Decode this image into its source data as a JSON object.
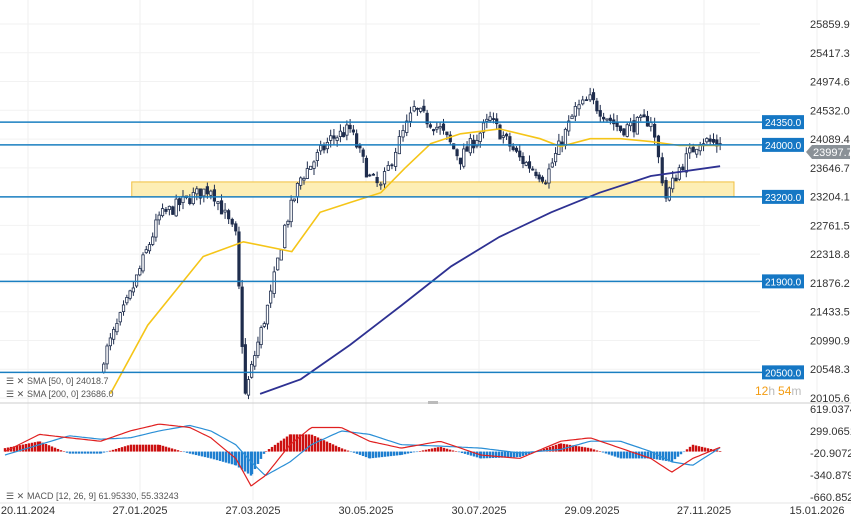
{
  "chart_data": {
    "type": "candlestick",
    "price_axis": {
      "ticks": [
        "25859.9",
        "25417.3",
        "24974.6",
        "24532.0",
        "24089.4",
        "23646.7",
        "23204.1",
        "22761.5",
        "22318.8",
        "21876.2",
        "21433.5",
        "20990.9",
        "20548.3",
        "20105.6"
      ],
      "ylim": [
        20105.6,
        25859.9
      ]
    },
    "macd_axis": {
      "ticks": [
        "619.0374",
        "299.0651",
        "-20.9072",
        "-340.879",
        "-660.852"
      ],
      "ylim": [
        -660.852,
        619.0374
      ]
    },
    "date_ticks": [
      "20.11.2024",
      "27.01.2025",
      "27.03.2025",
      "30.05.2025",
      "30.07.2025",
      "29.09.2025",
      "27.11.2025",
      "15.01.2026"
    ],
    "grid": true,
    "closes": [
      {
        "date": "03.01.2025",
        "close": 20620
      },
      {
        "date": "21.01.2025",
        "close": 21680
      },
      {
        "date": "06.02.2025",
        "close": 22890
      },
      {
        "date": "22.02.2025",
        "close": 23190
      },
      {
        "date": "05.03.2025",
        "close": 23340
      },
      {
        "date": "18.03.2025",
        "close": 22590
      },
      {
        "date": "23.03.2025",
        "close": 20150
      },
      {
        "date": "28.03.2025",
        "close": 20770
      },
      {
        "date": "06.04.2025",
        "close": 21680
      },
      {
        "date": "14.04.2025",
        "close": 22740
      },
      {
        "date": "23.04.2025",
        "close": 23490
      },
      {
        "date": "10.05.2025",
        "close": 24090
      },
      {
        "date": "21.05.2025",
        "close": 24240
      },
      {
        "date": "01.06.2025",
        "close": 23490
      },
      {
        "date": "07.06.2025",
        "close": 23340
      },
      {
        "date": "15.06.2025",
        "close": 23940
      },
      {
        "date": "25.06.2025",
        "close": 24540
      },
      {
        "date": "09.07.2025",
        "close": 24240
      },
      {
        "date": "20.07.2025",
        "close": 23790
      },
      {
        "date": "05.08.2025",
        "close": 24390
      },
      {
        "date": "21.08.2025",
        "close": 23790
      },
      {
        "date": "04.09.2025",
        "close": 23490
      },
      {
        "date": "20.09.2025",
        "close": 24540
      },
      {
        "date": "28.09.2025",
        "close": 24690
      },
      {
        "date": "14.10.2025",
        "close": 24240
      },
      {
        "date": "30.10.2025",
        "close": 24390
      },
      {
        "date": "07.11.2025",
        "close": 23190
      },
      {
        "date": "14.11.2025",
        "close": 23640
      },
      {
        "date": "25.11.2025",
        "close": 24090
      },
      {
        "date": "04.12.2025",
        "close": 23997.7
      }
    ],
    "sma50": [
      {
        "date": "09.01.2025",
        "value": 20170
      },
      {
        "date": "31.01.2025",
        "value": 21225
      },
      {
        "date": "01.03.2025",
        "value": 22283
      },
      {
        "date": "22.03.2025",
        "value": 22509
      },
      {
        "date": "18.04.2025",
        "value": 22358
      },
      {
        "date": "04.05.2025",
        "value": 22962
      },
      {
        "date": "21.05.2025",
        "value": 23113
      },
      {
        "date": "07.06.2025",
        "value": 23265
      },
      {
        "date": "20.06.2025",
        "value": 23642
      },
      {
        "date": "04.07.2025",
        "value": 24020
      },
      {
        "date": "20.07.2025",
        "value": 24171
      },
      {
        "date": "10.08.2025",
        "value": 24246
      },
      {
        "date": "01.09.2025",
        "value": 24095
      },
      {
        "date": "12.09.2025",
        "value": 23975
      },
      {
        "date": "28.09.2025",
        "value": 24095
      },
      {
        "date": "14.10.2025",
        "value": 24095
      },
      {
        "date": "30.10.2025",
        "value": 24050
      },
      {
        "date": "14.11.2025",
        "value": 23990
      },
      {
        "date": "04.12.2025",
        "value": 23990
      }
    ],
    "sma200": [
      {
        "date": "31.03.2025",
        "value": 20168
      },
      {
        "date": "23.04.2025",
        "value": 20394
      },
      {
        "date": "21.05.2025",
        "value": 20923
      },
      {
        "date": "18.06.2025",
        "value": 21527
      },
      {
        "date": "15.07.2025",
        "value": 22132
      },
      {
        "date": "10.08.2025",
        "value": 22585
      },
      {
        "date": "07.09.2025",
        "value": 22962
      },
      {
        "date": "03.10.2025",
        "value": 23265
      },
      {
        "date": "30.10.2025",
        "value": 23521
      },
      {
        "date": "04.12.2025",
        "value": 23672
      }
    ],
    "macd": [
      {
        "date": "06.11.2024",
        "macd": 0,
        "signal": -50
      },
      {
        "date": "27.11.2024",
        "macd": 250,
        "signal": 100
      },
      {
        "date": "15.12.2024",
        "macd": 200,
        "signal": 230
      },
      {
        "date": "03.01.2025",
        "macd": 150,
        "signal": 180
      },
      {
        "date": "21.01.2025",
        "macd": 300,
        "signal": 200
      },
      {
        "date": "06.02.2025",
        "macd": 400,
        "signal": 300
      },
      {
        "date": "22.02.2025",
        "macd": 350,
        "signal": 380
      },
      {
        "date": "05.03.2025",
        "macd": 200,
        "signal": 300
      },
      {
        "date": "18.03.2025",
        "macd": -100,
        "signal": 100
      },
      {
        "date": "26.03.2025",
        "macd": -500,
        "signal": -150
      },
      {
        "date": "03.04.2025",
        "macd": -350,
        "signal": -350
      },
      {
        "date": "17.04.2025",
        "macd": 100,
        "signal": -150
      },
      {
        "date": "29.04.2025",
        "macd": 350,
        "signal": 100
      },
      {
        "date": "16.05.2025",
        "macd": 350,
        "signal": 300
      },
      {
        "date": "01.06.2025",
        "macd": 150,
        "signal": 250
      },
      {
        "date": "18.06.2025",
        "macd": 50,
        "signal": 100
      },
      {
        "date": "09.07.2025",
        "macd": 150,
        "signal": 80
      },
      {
        "date": "31.07.2025",
        "macd": -50,
        "signal": 50
      },
      {
        "date": "21.08.2025",
        "macd": -100,
        "signal": -20
      },
      {
        "date": "12.09.2025",
        "macd": 150,
        "signal": 30
      },
      {
        "date": "28.09.2025",
        "macd": 200,
        "signal": 150
      },
      {
        "date": "14.10.2025",
        "macd": 50,
        "signal": 150
      },
      {
        "date": "30.10.2025",
        "macd": -100,
        "signal": 0
      },
      {
        "date": "10.11.2025",
        "macd": -300,
        "signal": -150
      },
      {
        "date": "21.11.2025",
        "macd": -100,
        "signal": -200
      },
      {
        "date": "04.12.2025",
        "macd": 61.9533,
        "signal": 55.33243
      }
    ],
    "levels": [
      {
        "value": 24350,
        "label": "24350.0"
      },
      {
        "value": 24000,
        "label": "24000.0"
      },
      {
        "value": 23200,
        "label": "23200.0"
      },
      {
        "value": 21900,
        "label": "21900.0"
      },
      {
        "value": 20500,
        "label": "20500.0"
      }
    ],
    "zone": {
      "from": 23200,
      "to": 23430,
      "start": "22.01.2025",
      "end": "10.12.2025"
    },
    "colors": {
      "candle": "#1f2d4d",
      "sma50": "#f5c518",
      "sma200": "#2e3192",
      "level": "#1a7fc1",
      "macd_line": "#e02020",
      "signal_line": "#2a8fd6",
      "hist_pos": "#cc1111",
      "hist_neg": "#1e7fd0",
      "zone": "#fdeeb5",
      "timer": "#f39c12"
    }
  },
  "legend": {
    "sma50": "SMA [50, 0] 24018.7",
    "sma200": "SMA [200, 0] 23686.0",
    "macd": "MACD [12, 26, 9] 61.95330,  55.33243"
  },
  "current_price": "23997.7",
  "timer": {
    "hours": "12",
    "h": "h",
    "minutes": "54",
    "m": "m"
  }
}
